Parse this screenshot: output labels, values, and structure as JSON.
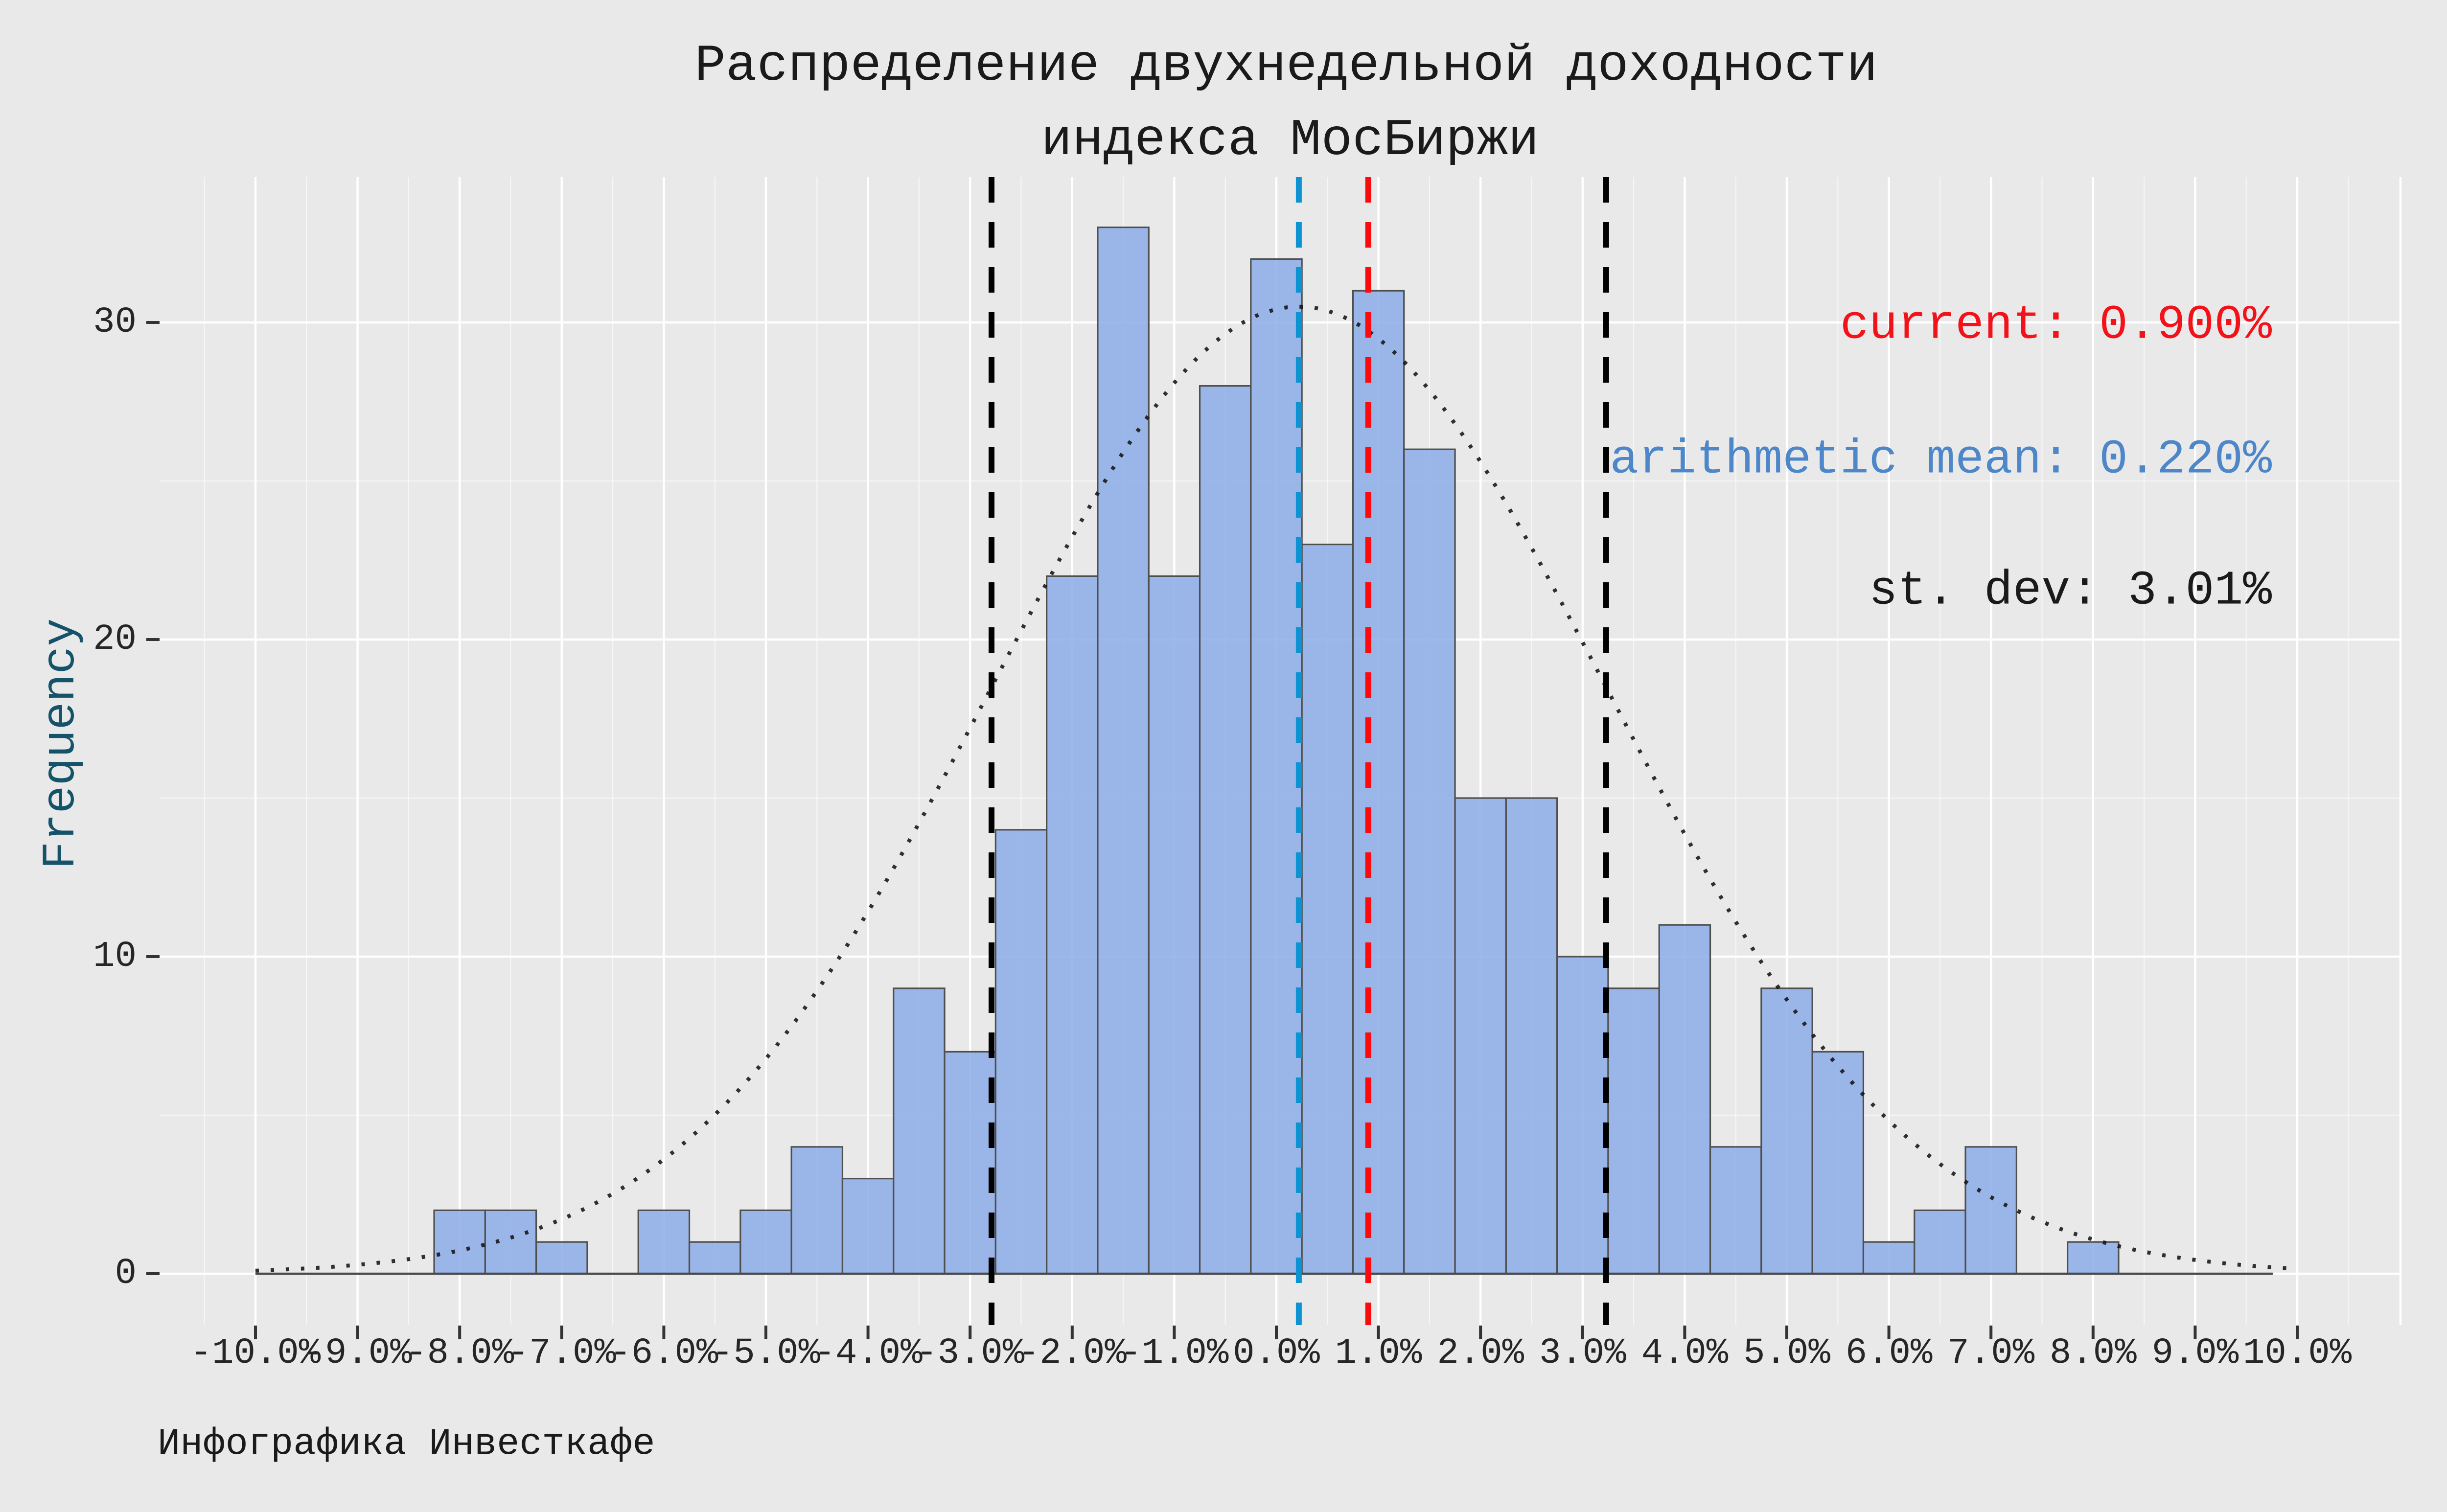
{
  "title": {
    "line1": "Распределение двухнедельной доходности",
    "line2": "индекса МосБиржи"
  },
  "caption": "Инфографика Инвесткафе",
  "y_axis": {
    "label": "Frequency",
    "ticks": [
      0,
      10,
      20,
      30
    ],
    "minor_ticks": [
      5,
      15,
      25
    ]
  },
  "x_axis": {
    "ticks": [
      {
        "v": -10,
        "label": "-10.0%"
      },
      {
        "v": -9,
        "label": "-9.0%"
      },
      {
        "v": -8,
        "label": "-8.0%"
      },
      {
        "v": -7,
        "label": "-7.0%"
      },
      {
        "v": -6,
        "label": "-6.0%"
      },
      {
        "v": -5,
        "label": "-5.0%"
      },
      {
        "v": -4,
        "label": "-4.0%"
      },
      {
        "v": -3,
        "label": "-3.0%"
      },
      {
        "v": -2,
        "label": "-2.0%"
      },
      {
        "v": -1,
        "label": "-1.0%"
      },
      {
        "v": 0,
        "label": "0.0%"
      },
      {
        "v": 1,
        "label": "1.0%"
      },
      {
        "v": 2,
        "label": "2.0%"
      },
      {
        "v": 3,
        "label": "3.0%"
      },
      {
        "v": 4,
        "label": "4.0%"
      },
      {
        "v": 5,
        "label": "5.0%"
      },
      {
        "v": 6,
        "label": "6.0%"
      },
      {
        "v": 7,
        "label": "7.0%"
      },
      {
        "v": 8,
        "label": "8.0%"
      },
      {
        "v": 9,
        "label": "9.0%"
      },
      {
        "v": 10,
        "label": "10.0%"
      }
    ],
    "minor_step": 0.5
  },
  "annotations": {
    "current": {
      "text": "current: 0.900%",
      "color": "#f3121a"
    },
    "mean": {
      "text": "arithmetic mean: 0.220%",
      "color": "#4d87c9"
    },
    "stdev": {
      "text": "st. dev: 3.01%",
      "color": "#1a1a1a"
    }
  },
  "chart_data": {
    "type": "histogram",
    "title": "Распределение двухнедельной доходности индекса МосБиржи",
    "xlabel_units": "percent (two-week return)",
    "ylabel": "Frequency",
    "bin_width": 0.5,
    "bin_centers": [
      -8.0,
      -7.5,
      -7.0,
      -6.5,
      -6.0,
      -5.5,
      -5.0,
      -4.5,
      -4.0,
      -3.5,
      -3.0,
      -2.5,
      -2.0,
      -1.5,
      -1.0,
      -0.5,
      0.0,
      0.5,
      1.0,
      1.5,
      2.0,
      2.5,
      3.0,
      3.5,
      4.0,
      4.5,
      5.0,
      5.5,
      6.0,
      6.5,
      7.0,
      7.5,
      8.0
    ],
    "counts": [
      2,
      2,
      1,
      0,
      2,
      1,
      2,
      4,
      3,
      9,
      7,
      14,
      22,
      33,
      22,
      28,
      32,
      23,
      31,
      26,
      15,
      15,
      10,
      9,
      11,
      4,
      9,
      7,
      1,
      2,
      4,
      0,
      1
    ],
    "xlim": [
      -10.9,
      11.0
    ],
    "ylim": [
      0,
      34.6
    ],
    "grid": "ggplot-style white on gray",
    "stats": {
      "current": 0.9,
      "arithmetic_mean": 0.22,
      "st_dev": 3.01
    },
    "normal_curve": {
      "mean": 0.22,
      "sd": 3.01,
      "peak": 30.5,
      "style": "dotted"
    },
    "vlines": [
      {
        "at_value": -2.79,
        "meaning": "mean - st.dev",
        "color": "#000000",
        "style": "dashed"
      },
      {
        "at_value": 3.23,
        "meaning": "mean + st.dev",
        "color": "#000000",
        "style": "dashed"
      },
      {
        "at_value": 0.22,
        "meaning": "arithmetic mean",
        "color": "#0d93d2",
        "style": "dashed"
      },
      {
        "at_value": 0.9,
        "meaning": "current",
        "color": "#fb0a0e",
        "style": "dashed"
      }
    ]
  },
  "colors": {
    "figure_bg": "#e9e9e9",
    "panel_bg": "#e9e9e9",
    "grid_major": "#ffffff",
    "grid_minor": "#ffffff",
    "bar_fill": "#8eade8",
    "bar_stroke": "#4f4f4f",
    "baseline": "#4a4a4a",
    "curve": "#141414",
    "axis_text": "#262626",
    "tick_mark": "#333333",
    "y_label": "#15536a",
    "title": "#1a1a1a",
    "caption": "#1a1a1a"
  }
}
